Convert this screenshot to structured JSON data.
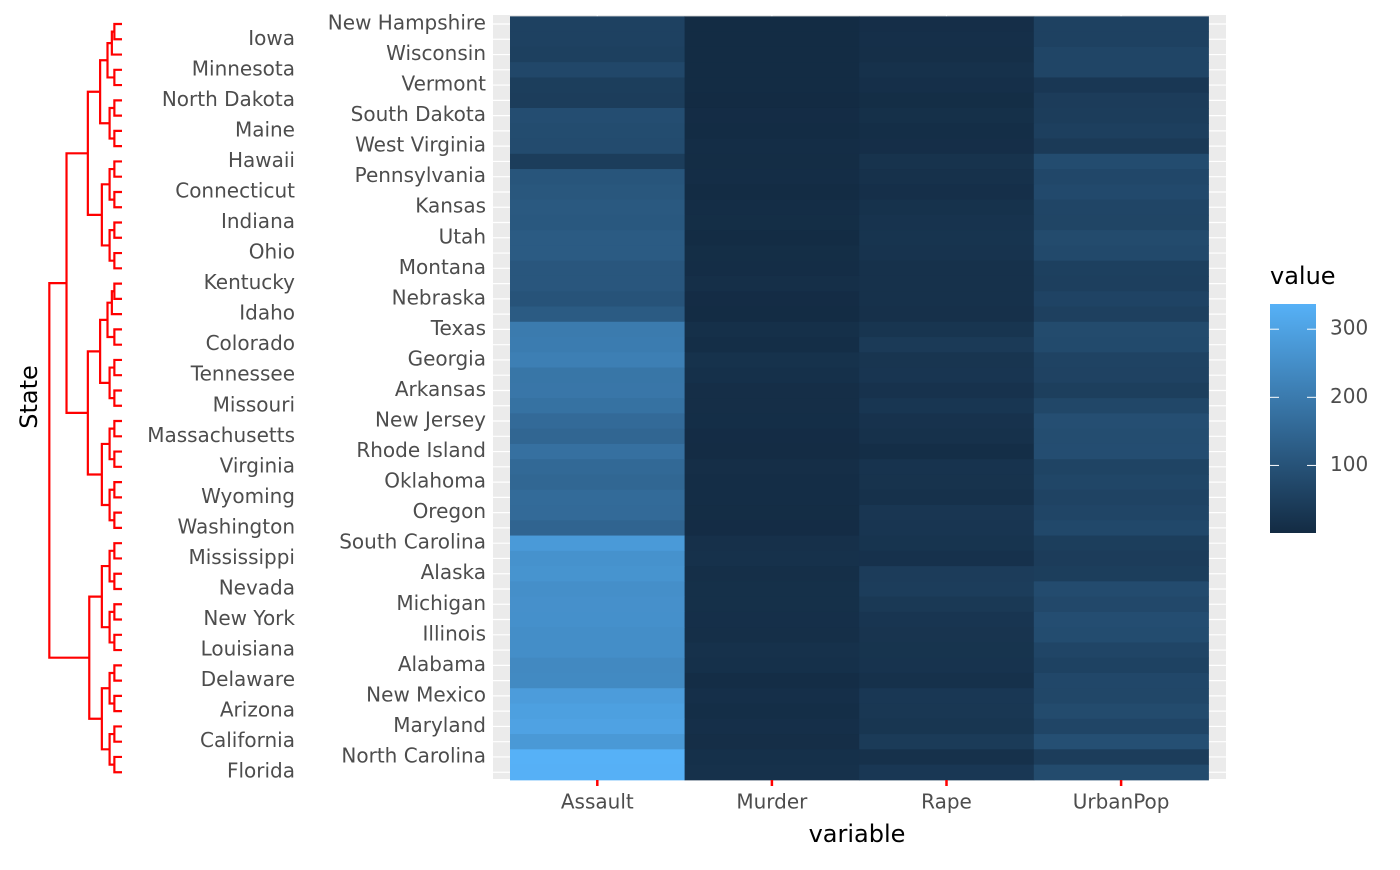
{
  "chart_data": {
    "type": "heatmap",
    "x_label": "variable",
    "y_label": "State",
    "x": [
      "Assault",
      "Murder",
      "Rape",
      "UrbanPop"
    ],
    "y": [
      "New Hampshire",
      "Iowa",
      "Wisconsin",
      "Minnesota",
      "Vermont",
      "North Dakota",
      "South Dakota",
      "Maine",
      "West Virginia",
      "Hawaii",
      "Pennsylvania",
      "Connecticut",
      "Kansas",
      "Indiana",
      "Utah",
      "Ohio",
      "Montana",
      "Kentucky",
      "Nebraska",
      "Idaho",
      "Texas",
      "Colorado",
      "Georgia",
      "Tennessee",
      "Arkansas",
      "Missouri",
      "New Jersey",
      "Massachusetts",
      "Rhode Island",
      "Virginia",
      "Oklahoma",
      "Wyoming",
      "Oregon",
      "Washington",
      "South Carolina",
      "Mississippi",
      "Alaska",
      "Nevada",
      "Michigan",
      "New York",
      "Illinois",
      "Louisiana",
      "Alabama",
      "Delaware",
      "New Mexico",
      "Arizona",
      "Maryland",
      "California",
      "North Carolina",
      "Florida"
    ],
    "values": [
      [
        57,
        2.1,
        9.5,
        56
      ],
      [
        56,
        2.2,
        11.3,
        57
      ],
      [
        53,
        2.6,
        10.8,
        66
      ],
      [
        72,
        2.7,
        14.9,
        66
      ],
      [
        48,
        2.2,
        11.2,
        32
      ],
      [
        45,
        0.8,
        7.3,
        44
      ],
      [
        86,
        3.8,
        12.8,
        45
      ],
      [
        83,
        2.1,
        7.8,
        51
      ],
      [
        81,
        5.7,
        9.3,
        39
      ],
      [
        46,
        5.3,
        20.2,
        83
      ],
      [
        106,
        6.3,
        14.9,
        72
      ],
      [
        110,
        3.3,
        11.1,
        77
      ],
      [
        115,
        6.0,
        18.0,
        66
      ],
      [
        113,
        7.2,
        21.0,
        65
      ],
      [
        120,
        3.2,
        22.9,
        80
      ],
      [
        120,
        7.3,
        21.4,
        75
      ],
      [
        109,
        6.0,
        16.4,
        53
      ],
      [
        109,
        9.7,
        16.3,
        52
      ],
      [
        102,
        4.3,
        16.5,
        62
      ],
      [
        120,
        2.6,
        14.2,
        54
      ],
      [
        201,
        12.7,
        25.5,
        80
      ],
      [
        204,
        7.9,
        38.7,
        78
      ],
      [
        211,
        17.4,
        25.8,
        60
      ],
      [
        188,
        13.2,
        26.9,
        59
      ],
      [
        190,
        8.8,
        19.5,
        50
      ],
      [
        178,
        9.0,
        28.2,
        70
      ],
      [
        159,
        7.4,
        18.8,
        89
      ],
      [
        149,
        4.4,
        16.3,
        85
      ],
      [
        174,
        3.4,
        8.3,
        87
      ],
      [
        156,
        8.5,
        20.7,
        63
      ],
      [
        151,
        6.6,
        20.0,
        68
      ],
      [
        161,
        6.8,
        15.6,
        60
      ],
      [
        159,
        4.9,
        29.3,
        67
      ],
      [
        145,
        4.0,
        26.2,
        73
      ],
      [
        279,
        14.4,
        22.5,
        48
      ],
      [
        259,
        16.1,
        17.1,
        44
      ],
      [
        263,
        10.0,
        44.5,
        48
      ],
      [
        252,
        12.2,
        46.0,
        81
      ],
      [
        255,
        12.1,
        35.1,
        74
      ],
      [
        254,
        11.1,
        26.1,
        86
      ],
      [
        249,
        10.4,
        24.0,
        83
      ],
      [
        249,
        15.4,
        22.2,
        66
      ],
      [
        236,
        13.2,
        21.2,
        58
      ],
      [
        238,
        5.9,
        15.8,
        72
      ],
      [
        285,
        11.4,
        32.1,
        70
      ],
      [
        294,
        8.1,
        31.0,
        80
      ],
      [
        300,
        11.3,
        27.8,
        67
      ],
      [
        276,
        9.0,
        40.6,
        91
      ],
      [
        337,
        13.0,
        16.1,
        45
      ],
      [
        335,
        15.4,
        31.9,
        80
      ]
    ],
    "legend_title": "value",
    "colorlim": [
      0.8,
      337
    ],
    "colorticks": [
      100,
      200,
      300
    ],
    "low_color": "#132B43",
    "high_color": "#56B1F7",
    "dendrogram_color": "#ff0000",
    "tick_color": "#ff0000"
  }
}
